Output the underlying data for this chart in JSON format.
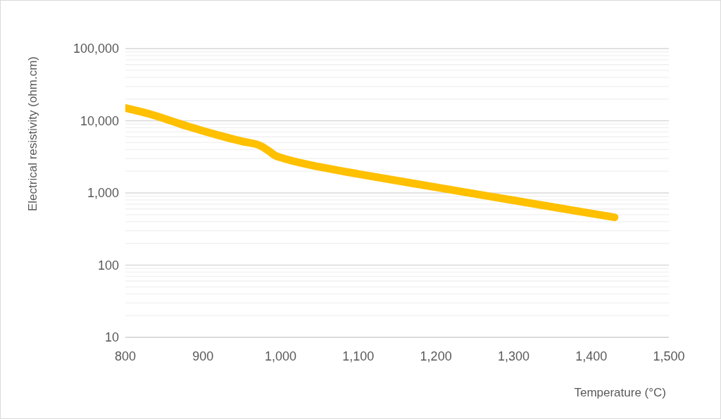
{
  "chart_data": {
    "type": "line",
    "xlabel": "Temperature (°C)",
    "ylabel": "Electrical resistivity (ohm.cm)",
    "x": [
      800,
      830,
      880,
      920,
      950,
      975,
      985,
      993,
      1000,
      1050,
      1100,
      1200,
      1300,
      1400,
      1430
    ],
    "series": [
      {
        "color": "#ffc000",
        "values": [
          15000,
          12500,
          8400,
          6300,
          5200,
          4450,
          3800,
          3300,
          3100,
          2300,
          1830,
          1200,
          790,
          520,
          460
        ]
      }
    ],
    "xlim": [
      800,
      1500
    ],
    "xticks": [
      800,
      900,
      {
        "value": 1000,
        "label": "1,000"
      },
      {
        "value": 1100,
        "label": "1,100"
      },
      {
        "value": 1200,
        "label": "1,200"
      },
      {
        "value": 1300,
        "label": "1,300"
      },
      {
        "value": 1400,
        "label": "1,400"
      },
      {
        "value": 1500,
        "label": "1,500"
      }
    ],
    "ylim": [
      10,
      100000
    ],
    "yticks": [
      10,
      {
        "value": 20,
        "label": null
      },
      {
        "value": 30,
        "label": null
      },
      {
        "value": 40,
        "label": null
      },
      {
        "value": 50,
        "label": null
      },
      {
        "value": 60,
        "label": null
      },
      {
        "value": 70,
        "label": null
      },
      {
        "value": 80,
        "label": null
      },
      {
        "value": 90,
        "label": null
      },
      100,
      {
        "value": 200,
        "label": null
      },
      {
        "value": 300,
        "label": null
      },
      {
        "value": 400,
        "label": null
      },
      {
        "value": 500,
        "label": null
      },
      {
        "value": 600,
        "label": null
      },
      {
        "value": 700,
        "label": null
      },
      {
        "value": 800,
        "label": null
      },
      {
        "value": 900,
        "label": null
      },
      {
        "value": 1000,
        "label": "1,000"
      },
      {
        "value": 2000,
        "label": null
      },
      {
        "value": 3000,
        "label": null
      },
      {
        "value": 4000,
        "label": null
      },
      {
        "value": 5000,
        "label": null
      },
      {
        "value": 6000,
        "label": null
      },
      {
        "value": 7000,
        "label": null
      },
      {
        "value": 8000,
        "label": null
      },
      {
        "value": 9000,
        "label": null
      },
      {
        "value": 10000,
        "label": "10,000"
      },
      {
        "value": 20000,
        "label": null
      },
      {
        "value": 30000,
        "label": null
      },
      {
        "value": 40000,
        "label": null
      },
      {
        "value": 50000,
        "label": null
      },
      {
        "value": 60000,
        "label": null
      },
      {
        "value": 70000,
        "label": null
      },
      {
        "value": 80000,
        "label": null
      },
      {
        "value": 90000,
        "label": null
      },
      {
        "value": 100000,
        "label": "100,000"
      }
    ],
    "log": "y",
    "grid": "y"
  }
}
